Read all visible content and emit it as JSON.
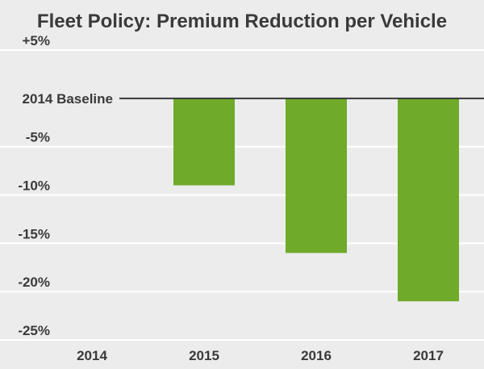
{
  "chart_data": {
    "type": "bar",
    "title": "Fleet Policy: Premium Reduction per Vehicle",
    "xlabel": "",
    "ylabel": "",
    "categories": [
      "2014",
      "2015",
      "2016",
      "2017"
    ],
    "values": [
      0,
      -9,
      -16,
      -21
    ],
    "ylim": [
      -25,
      5
    ],
    "yticks": [
      {
        "value": 5,
        "label": "+5%"
      },
      {
        "value": 0,
        "label": "2014 Baseline"
      },
      {
        "value": -5,
        "label": "-5%"
      },
      {
        "value": -10,
        "label": "-10%"
      },
      {
        "value": -15,
        "label": "-15%"
      },
      {
        "value": -20,
        "label": "-20%"
      },
      {
        "value": -25,
        "label": "-25%"
      }
    ],
    "grid": true,
    "colors": {
      "bar": "#6faa2a",
      "grid": "#ffffff",
      "baseline": "#3a3a3a",
      "background": "#ececec",
      "text": "#3a3a3a"
    }
  }
}
